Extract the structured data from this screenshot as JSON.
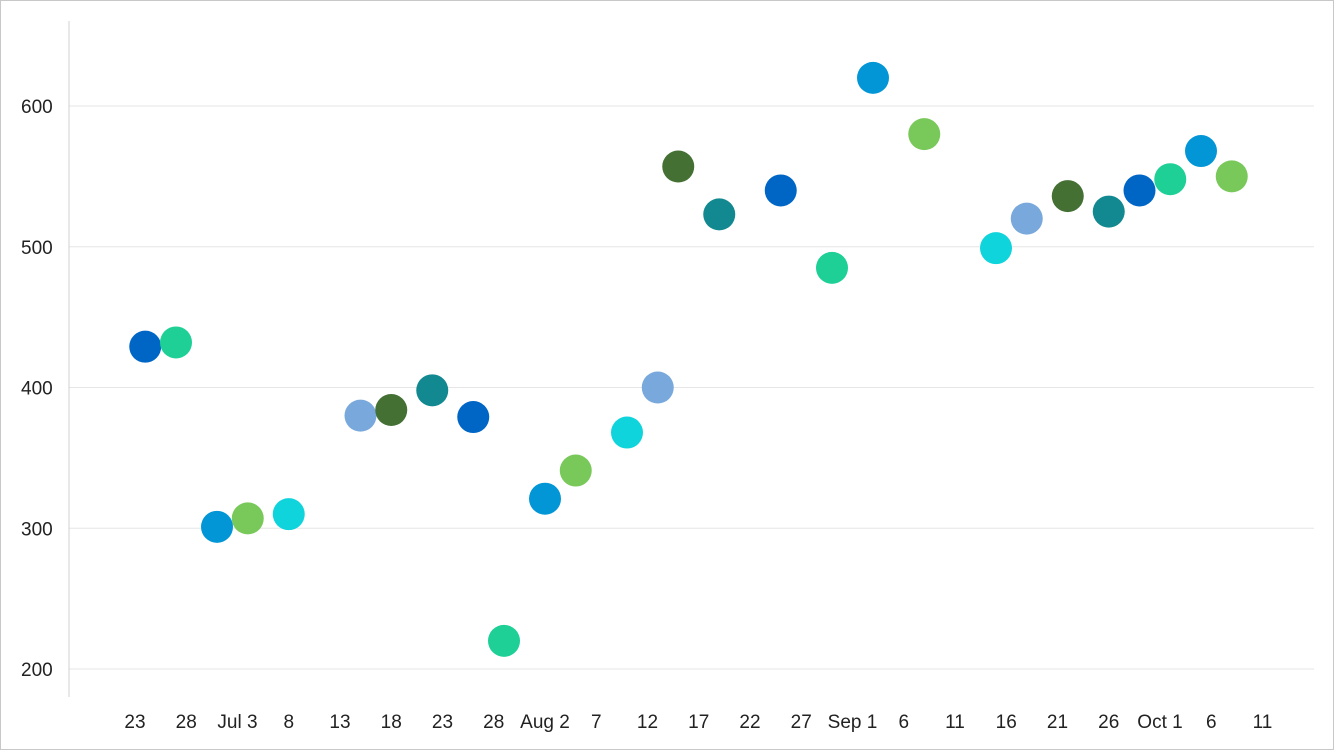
{
  "chart_data": {
    "type": "scatter",
    "title": "",
    "xlabel": "",
    "ylabel": "",
    "ylim": [
      190,
      660
    ],
    "xlim": [
      "2023-06-18",
      "2023-10-13"
    ],
    "grid": true,
    "y_ticks": [
      200,
      300,
      400,
      500,
      600
    ],
    "x_ticks": [
      {
        "date": "2023-06-23",
        "label": "23"
      },
      {
        "date": "2023-06-28",
        "label": "28"
      },
      {
        "date": "2023-07-03",
        "label": "Jul 3"
      },
      {
        "date": "2023-07-08",
        "label": "8"
      },
      {
        "date": "2023-07-13",
        "label": "13"
      },
      {
        "date": "2023-07-18",
        "label": "18"
      },
      {
        "date": "2023-07-23",
        "label": "23"
      },
      {
        "date": "2023-07-28",
        "label": "28"
      },
      {
        "date": "2023-08-02",
        "label": "Aug 2"
      },
      {
        "date": "2023-08-07",
        "label": "7"
      },
      {
        "date": "2023-08-12",
        "label": "12"
      },
      {
        "date": "2023-08-17",
        "label": "17"
      },
      {
        "date": "2023-08-22",
        "label": "22"
      },
      {
        "date": "2023-08-27",
        "label": "27"
      },
      {
        "date": "2023-09-01",
        "label": "Sep 1"
      },
      {
        "date": "2023-09-06",
        "label": "6"
      },
      {
        "date": "2023-09-11",
        "label": "11"
      },
      {
        "date": "2023-09-16",
        "label": "16"
      },
      {
        "date": "2023-09-21",
        "label": "21"
      },
      {
        "date": "2023-09-26",
        "label": "26"
      },
      {
        "date": "2023-10-01",
        "label": "Oct 1"
      },
      {
        "date": "2023-10-06",
        "label": "6"
      },
      {
        "date": "2023-10-11",
        "label": "11"
      }
    ],
    "points": [
      {
        "x": "2023-06-24",
        "y": 429,
        "color": "#0066c6"
      },
      {
        "x": "2023-06-27",
        "y": 432,
        "color": "#1ecf96"
      },
      {
        "x": "2023-07-01",
        "y": 301,
        "color": "#0396d6"
      },
      {
        "x": "2023-07-04",
        "y": 307,
        "color": "#78c85a"
      },
      {
        "x": "2023-07-08",
        "y": 310,
        "color": "#10d4dc"
      },
      {
        "x": "2023-07-15",
        "y": 380,
        "color": "#78a8dc"
      },
      {
        "x": "2023-07-18",
        "y": 384,
        "color": "#447034"
      },
      {
        "x": "2023-07-22",
        "y": 398,
        "color": "#128890"
      },
      {
        "x": "2023-07-26",
        "y": 379,
        "color": "#0066c6"
      },
      {
        "x": "2023-07-29",
        "y": 220,
        "color": "#1ecf96"
      },
      {
        "x": "2023-08-02",
        "y": 321,
        "color": "#0396d6"
      },
      {
        "x": "2023-08-05",
        "y": 341,
        "color": "#78c85a"
      },
      {
        "x": "2023-08-10",
        "y": 368,
        "color": "#10d4dc"
      },
      {
        "x": "2023-08-13",
        "y": 400,
        "color": "#78a8dc"
      },
      {
        "x": "2023-08-15",
        "y": 557,
        "color": "#447034"
      },
      {
        "x": "2023-08-19",
        "y": 523,
        "color": "#128890"
      },
      {
        "x": "2023-08-25",
        "y": 540,
        "color": "#0066c6"
      },
      {
        "x": "2023-08-30",
        "y": 485,
        "color": "#1ecf96"
      },
      {
        "x": "2023-09-03",
        "y": 620,
        "color": "#0396d6"
      },
      {
        "x": "2023-09-08",
        "y": 580,
        "color": "#78c85a"
      },
      {
        "x": "2023-09-15",
        "y": 499,
        "color": "#10d4dc"
      },
      {
        "x": "2023-09-18",
        "y": 520,
        "color": "#78a8dc"
      },
      {
        "x": "2023-09-22",
        "y": 536,
        "color": "#447034"
      },
      {
        "x": "2023-09-26",
        "y": 525,
        "color": "#128890"
      },
      {
        "x": "2023-09-29",
        "y": 540,
        "color": "#0066c6"
      },
      {
        "x": "2023-10-02",
        "y": 548,
        "color": "#1ecf96"
      },
      {
        "x": "2023-10-05",
        "y": 568,
        "color": "#0396d6"
      },
      {
        "x": "2023-10-08",
        "y": 550,
        "color": "#78c85a"
      }
    ]
  }
}
